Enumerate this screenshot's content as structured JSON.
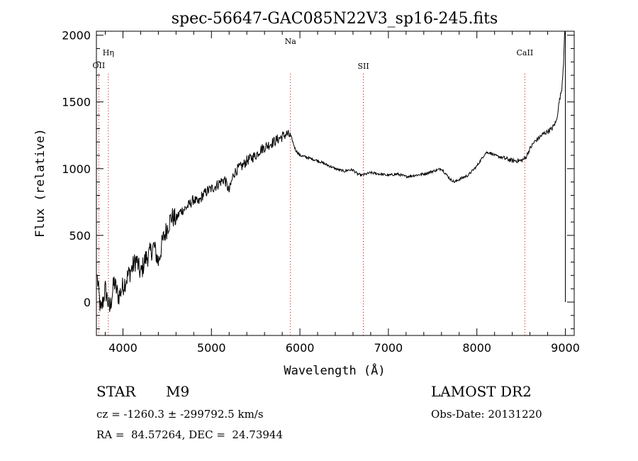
{
  "chart_data": {
    "type": "line",
    "title": "spec-56647-GAC085N22V3_sp16-245.fits",
    "xlabel": "Wavelength (Å)",
    "ylabel": "Flux (relative)",
    "xlim": [
      3700,
      9100
    ],
    "ylim": [
      -250,
      2030
    ],
    "x_ticks": [
      4000,
      5000,
      6000,
      7000,
      8000,
      9000
    ],
    "y_ticks": [
      0,
      500,
      1000,
      1500,
      2000
    ],
    "x_tick_labels": [
      "4000",
      "5000",
      "6000",
      "7000",
      "8000",
      "9000"
    ],
    "y_tick_labels": [
      "0",
      "500",
      "1000",
      "1500",
      "2000"
    ],
    "grid": false,
    "line_color": "#000000",
    "marker_color": "#cc0000",
    "series": [
      {
        "x": [
          3710,
          3750,
          3800,
          3850,
          3900,
          3950,
          4000,
          4050,
          4100,
          4150,
          4200,
          4250,
          4300,
          4350,
          4400,
          4450,
          4500,
          4550,
          4600,
          4650,
          4700,
          4750,
          4800,
          4850,
          4900,
          4950,
          5000,
          5050,
          5100,
          5150,
          5200,
          5250,
          5300,
          5350,
          5400,
          5450,
          5500,
          5550,
          5600,
          5650,
          5700,
          5750,
          5800,
          5850,
          5900,
          5950,
          6000,
          6100,
          6200,
          6300,
          6400,
          6500,
          6550,
          6600,
          6650,
          6700,
          6800,
          6900,
          7000,
          7100,
          7200,
          7300,
          7400,
          7500,
          7600,
          7650,
          7700,
          7750,
          7800,
          7900,
          8000,
          8050,
          8100,
          8150,
          8200,
          8300,
          8400,
          8500,
          8550,
          8600,
          8650,
          8700,
          8750,
          8800,
          8850,
          8900,
          8930,
          8960,
          8980,
          8990,
          9000
        ],
        "y": [
          180,
          -80,
          100,
          -60,
          150,
          40,
          120,
          190,
          250,
          320,
          210,
          320,
          360,
          420,
          300,
          460,
          560,
          640,
          620,
          680,
          700,
          730,
          770,
          740,
          800,
          830,
          850,
          870,
          900,
          920,
          830,
          960,
          1000,
          1020,
          1060,
          1080,
          1100,
          1140,
          1160,
          1180,
          1200,
          1220,
          1240,
          1260,
          1240,
          1140,
          1100,
          1080,
          1060,
          1030,
          1000,
          980,
          990,
          990,
          960,
          950,
          970,
          960,
          950,
          960,
          940,
          950,
          960,
          980,
          1000,
          960,
          920,
          900,
          920,
          950,
          1020,
          1070,
          1120,
          1120,
          1100,
          1080,
          1060,
          1060,
          1080,
          1150,
          1200,
          1230,
          1260,
          1280,
          1300,
          1360,
          1500,
          1600,
          1800,
          2000,
          2030
        ]
      }
    ],
    "lines": [
      {
        "label": "OII",
        "x": 3727
      },
      {
        "label": "Hη",
        "x": 3835
      },
      {
        "label": "Na",
        "x": 5893
      },
      {
        "label": "SII",
        "x": 6717
      },
      {
        "label": "CaII",
        "x": 8542
      }
    ]
  },
  "info": {
    "object_class": "STAR",
    "subclass": "M9",
    "survey": "LAMOST DR2",
    "cz_line": "cz = -1260.3 ± -299792.5 km/s",
    "obs_date": "Obs-Date: 20131220",
    "radec": "RA =  84.57264, DEC =  24.73944"
  }
}
